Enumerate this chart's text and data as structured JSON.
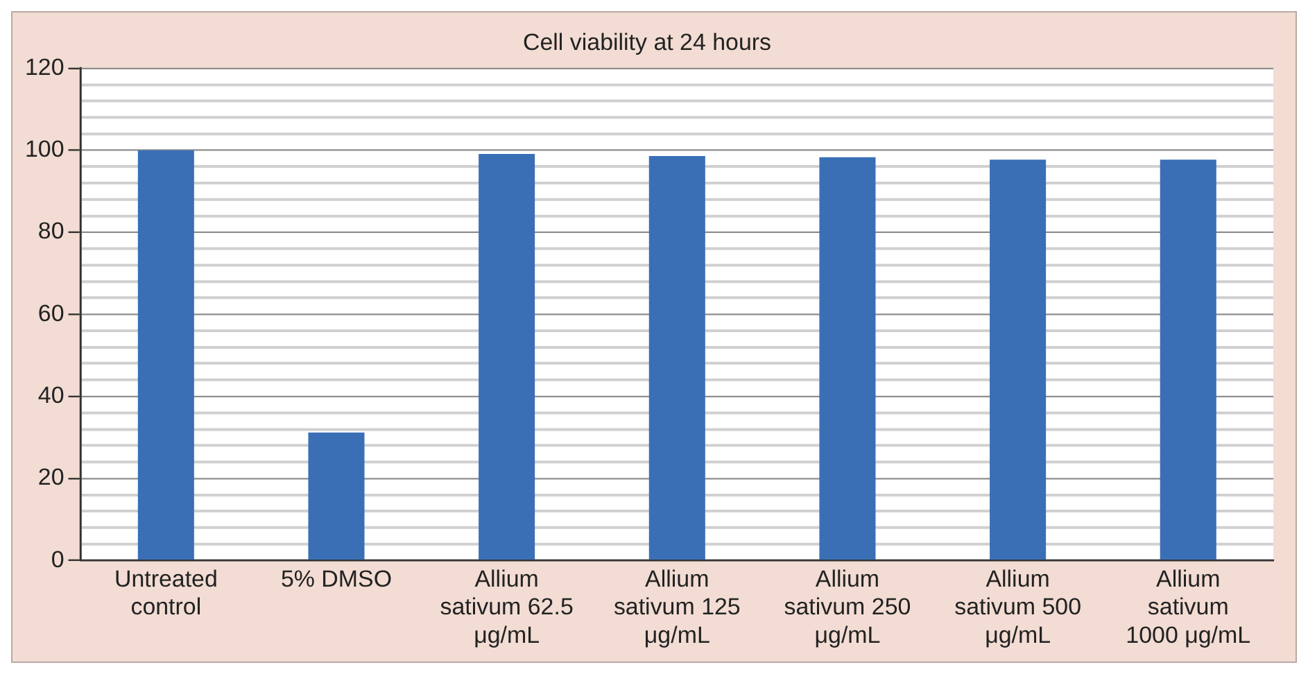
{
  "chart_data": {
    "type": "bar",
    "title": "Cell viability at 24 hours",
    "categories": [
      "Untreated control",
      "5% DMSO",
      "Allium sativum 62.5 μg/mL",
      "Allium sativum 125 μg/mL",
      "Allium sativum 250 μg/mL",
      "Allium sativum 500 μg/mL",
      "Allium sativum 1000 μg/mL"
    ],
    "values": [
      100,
      31.2,
      99.1,
      98.6,
      98.3,
      97.7,
      97.7
    ],
    "color": "#3a6fb6",
    "ylim": [
      0,
      120
    ],
    "yticks": [
      0,
      {
        "value": 4,
        "label": null
      },
      {
        "value": 8,
        "label": null
      },
      {
        "value": 12,
        "label": null
      },
      {
        "value": 16,
        "label": null
      },
      20,
      {
        "value": 24,
        "label": null
      },
      {
        "value": 28,
        "label": null
      },
      {
        "value": 32,
        "label": null
      },
      {
        "value": 36,
        "label": null
      },
      40,
      {
        "value": 44,
        "label": null
      },
      {
        "value": 48,
        "label": null
      },
      {
        "value": 52,
        "label": null
      },
      {
        "value": 56,
        "label": null
      },
      60,
      {
        "value": 64,
        "label": null
      },
      {
        "value": 68,
        "label": null
      },
      {
        "value": 72,
        "label": null
      },
      {
        "value": 76,
        "label": null
      },
      80,
      {
        "value": 84,
        "label": null
      },
      {
        "value": 88,
        "label": null
      },
      {
        "value": 92,
        "label": null
      },
      {
        "value": 96,
        "label": null
      },
      100,
      {
        "value": 104,
        "label": null
      },
      {
        "value": 108,
        "label": null
      },
      {
        "value": 112,
        "label": null
      },
      {
        "value": 116,
        "label": null
      },
      120
    ],
    "grid": "y",
    "legend": false
  }
}
